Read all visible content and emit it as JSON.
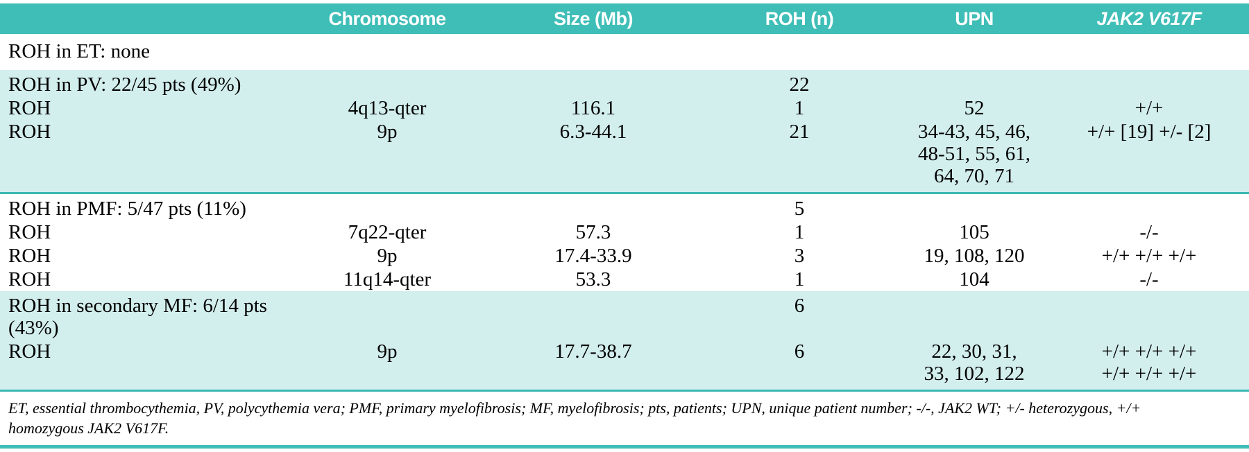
{
  "header": {
    "label": "",
    "chromosome": "Chromosome",
    "size": "Size (Mb)",
    "roh_n": "ROH (n)",
    "upn": "UPN",
    "jak2": "JAK2 V617F"
  },
  "rows": [
    {
      "label": "ROH in ET: none",
      "chromosome": "",
      "size": "",
      "roh_n": "",
      "upn": "",
      "jak2": ""
    },
    {
      "label": "ROH in PV: 22/45 pts (49%)",
      "chromosome": "",
      "size": "",
      "roh_n": "22",
      "upn": "",
      "jak2": ""
    },
    {
      "label": "ROH",
      "chromosome": "4q13-qter",
      "size": "116.1",
      "roh_n": "1",
      "upn": "52",
      "jak2": "+/+"
    },
    {
      "label": "ROH",
      "chromosome": "9p",
      "size": "6.3-44.1",
      "roh_n": "21",
      "upn": "34-43, 45, 46,\n48-51, 55, 61,\n64, 70, 71",
      "jak2": "+/+ [19] +/- [2]"
    },
    {
      "label": "ROH in PMF: 5/47 pts (11%)",
      "chromosome": "",
      "size": "",
      "roh_n": "5",
      "upn": "",
      "jak2": ""
    },
    {
      "label": "ROH",
      "chromosome": "7q22-qter",
      "size": "57.3",
      "roh_n": "1",
      "upn": "105",
      "jak2": "-/-"
    },
    {
      "label": "ROH",
      "chromosome": "9p",
      "size": "17.4-33.9",
      "roh_n": "3",
      "upn": "19, 108, 120",
      "jak2": "+/+ +/+ +/+"
    },
    {
      "label": "ROH",
      "chromosome": "11q14-qter",
      "size": "53.3",
      "roh_n": "1",
      "upn": "104",
      "jak2": "-/-"
    },
    {
      "label": "ROH in secondary MF: 6/14 pts (43%)",
      "chromosome": "",
      "size": "",
      "roh_n": "6",
      "upn": "",
      "jak2": ""
    },
    {
      "label": "ROH",
      "chromosome": "9p",
      "size": "17.7-38.7",
      "roh_n": "6",
      "upn": "22, 30, 31,\n33, 102, 122",
      "jak2": "+/+ +/+ +/+\n+/+ +/+ +/+"
    }
  ],
  "footnote": "ET, essential thrombocythemia, PV, polycythemia vera; PMF, primary myelofibrosis; MF, myelofibrosis; pts, patients; UPN, unique patient number; -/-, JAK2 WT; +/- heterozygous, +/+\nhomozygous JAK2 V617F.",
  "colors": {
    "header_bg": "#3FBEB7",
    "band_bg": "#D2EEED",
    "rule": "#3AB8B2",
    "header_text": "#FFFFFF",
    "body_text": "#000000"
  }
}
